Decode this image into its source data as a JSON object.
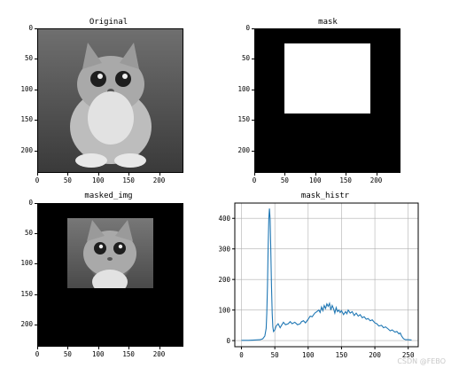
{
  "panels": {
    "original": {
      "title": "Original"
    },
    "mask": {
      "title": "mask"
    },
    "masked": {
      "title": "masked_img"
    },
    "hist": {
      "title": "mask_histr"
    }
  },
  "image_axes": {
    "y_ticks": [
      "0",
      "50",
      "100",
      "150",
      "200"
    ],
    "x_ticks": [
      "0",
      "50",
      "100",
      "150",
      "200"
    ]
  },
  "mask_rect": {
    "x0": 50,
    "x1": 190,
    "y0": 25,
    "y1": 140
  },
  "colors": {
    "line": "#1f77b4",
    "grid": "#b0b0b0",
    "mask_white": "#ffffff",
    "background": "#000000"
  },
  "watermark": "CSDN @FEBO",
  "chart_data": {
    "type": "line",
    "title": "mask_histr",
    "xlabel": "",
    "ylabel": "",
    "xlim": [
      -10,
      265
    ],
    "ylim": [
      -20,
      450
    ],
    "x_ticks": [
      0,
      50,
      100,
      150,
      200,
      250
    ],
    "y_ticks": [
      0,
      100,
      200,
      300,
      400
    ],
    "grid": true,
    "points": [
      [
        0,
        1
      ],
      [
        10,
        1
      ],
      [
        20,
        2
      ],
      [
        28,
        3
      ],
      [
        32,
        6
      ],
      [
        35,
        15
      ],
      [
        37,
        40
      ],
      [
        38,
        90
      ],
      [
        39,
        180
      ],
      [
        40,
        300
      ],
      [
        41,
        400
      ],
      [
        42,
        432
      ],
      [
        43,
        395
      ],
      [
        44,
        300
      ],
      [
        45,
        180
      ],
      [
        46,
        90
      ],
      [
        47,
        45
      ],
      [
        48,
        30
      ],
      [
        50,
        35
      ],
      [
        52,
        48
      ],
      [
        55,
        55
      ],
      [
        58,
        42
      ],
      [
        60,
        50
      ],
      [
        63,
        60
      ],
      [
        66,
        52
      ],
      [
        70,
        55
      ],
      [
        73,
        62
      ],
      [
        76,
        55
      ],
      [
        80,
        60
      ],
      [
        84,
        52
      ],
      [
        88,
        55
      ],
      [
        90,
        62
      ],
      [
        93,
        65
      ],
      [
        96,
        58
      ],
      [
        100,
        70
      ],
      [
        103,
        80
      ],
      [
        106,
        78
      ],
      [
        110,
        90
      ],
      [
        113,
        95
      ],
      [
        116,
        100
      ],
      [
        118,
        92
      ],
      [
        120,
        110
      ],
      [
        122,
        98
      ],
      [
        124,
        115
      ],
      [
        126,
        105
      ],
      [
        128,
        120
      ],
      [
        130,
        112
      ],
      [
        132,
        122
      ],
      [
        134,
        100
      ],
      [
        136,
        115
      ],
      [
        138,
        105
      ],
      [
        140,
        90
      ],
      [
        142,
        108
      ],
      [
        144,
        95
      ],
      [
        146,
        100
      ],
      [
        148,
        92
      ],
      [
        150,
        98
      ],
      [
        153,
        85
      ],
      [
        156,
        95
      ],
      [
        158,
        88
      ],
      [
        160,
        100
      ],
      [
        163,
        90
      ],
      [
        166,
        95
      ],
      [
        169,
        82
      ],
      [
        172,
        90
      ],
      [
        175,
        80
      ],
      [
        178,
        85
      ],
      [
        181,
        75
      ],
      [
        184,
        78
      ],
      [
        187,
        70
      ],
      [
        190,
        72
      ],
      [
        193,
        65
      ],
      [
        196,
        68
      ],
      [
        200,
        58
      ],
      [
        203,
        55
      ],
      [
        206,
        48
      ],
      [
        210,
        50
      ],
      [
        213,
        42
      ],
      [
        216,
        45
      ],
      [
        220,
        38
      ],
      [
        223,
        32
      ],
      [
        226,
        35
      ],
      [
        230,
        28
      ],
      [
        233,
        30
      ],
      [
        236,
        22
      ],
      [
        238,
        25
      ],
      [
        240,
        15
      ],
      [
        243,
        6
      ],
      [
        246,
        3
      ],
      [
        250,
        3
      ],
      [
        255,
        2
      ]
    ]
  }
}
